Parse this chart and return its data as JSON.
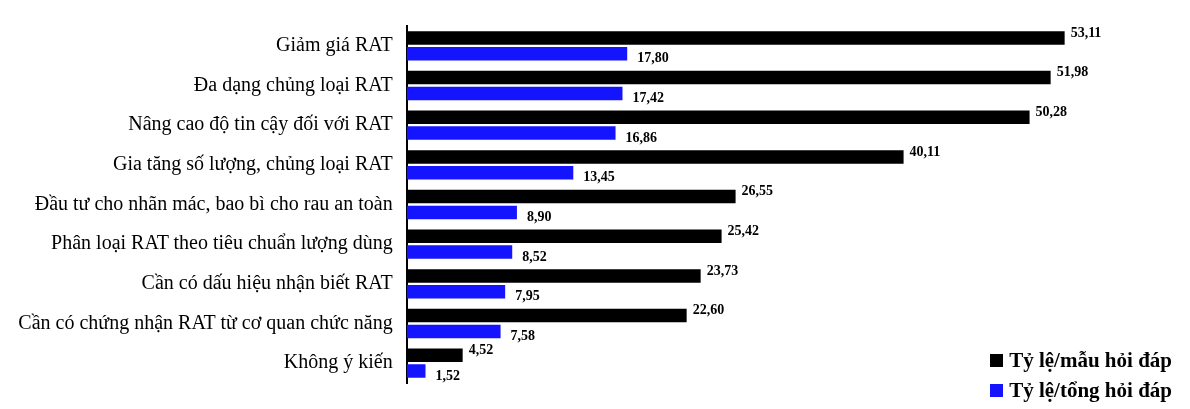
{
  "chart_data": {
    "type": "bar",
    "orientation": "horizontal",
    "categories": [
      "Giảm giá RAT",
      "Đa dạng chủng loại RAT",
      "Nâng cao độ tin cậy đối với RAT",
      "Gia tăng số lượng, chủng loại RAT",
      "Đầu tư cho nhãn mác, bao bì cho rau an toàn",
      "Phân loại RAT theo tiêu chuẩn lượng dùng",
      "Cần có dấu hiệu nhận biết RAT",
      "Cần có chứng nhận RAT từ cơ quan chức năng",
      "Không ý kiến"
    ],
    "series": [
      {
        "name": "Tỷ lệ/mẫu hỏi đáp",
        "color": "#000000",
        "values": [
          53.11,
          51.98,
          50.28,
          40.11,
          26.55,
          25.42,
          23.73,
          22.6,
          4.52
        ],
        "value_labels": [
          "53,11",
          "51,98",
          "50,28",
          "40,11",
          "26,55",
          "25,42",
          "23,73",
          "22,60",
          "4,52"
        ]
      },
      {
        "name": "Tỷ lệ/tổng hỏi đáp",
        "color": "#1414ff",
        "values": [
          17.8,
          17.42,
          16.86,
          13.45,
          8.9,
          8.52,
          7.95,
          7.58,
          1.52
        ],
        "value_labels": [
          "17,80",
          "17,42",
          "16,86",
          "13,45",
          "8,90",
          "8,52",
          "7,95",
          "7,58",
          "1,52"
        ]
      }
    ],
    "legend": "bottom right"
  }
}
